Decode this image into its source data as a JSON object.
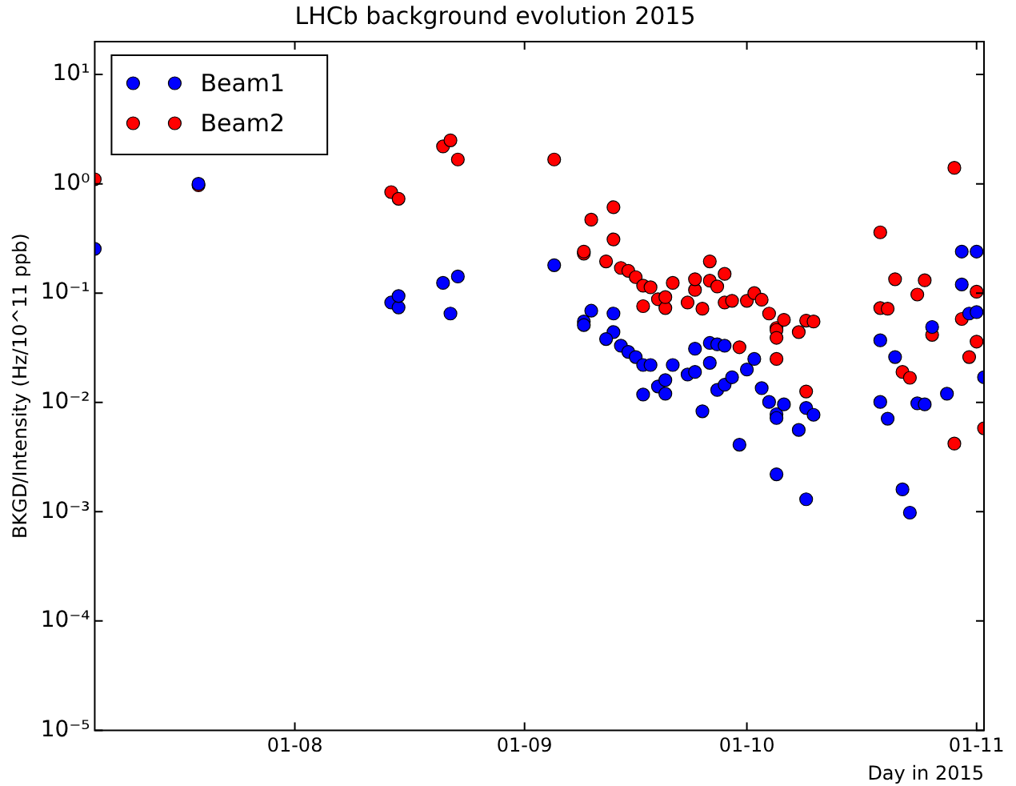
{
  "chart_data": {
    "type": "scatter",
    "title": "LHCb background evolution 2015",
    "xlabel": "Day in 2015",
    "ylabel": "BKGD/Intensity (Hz/10^11 ppb)",
    "log": "y",
    "grid": false,
    "legend": "top left",
    "marker": "circle",
    "xlim": [
      "2015-07-05",
      "2015-11-02"
    ],
    "xticks": [
      {
        "value": "2015-08-01",
        "label": "01-08"
      },
      {
        "value": "2015-09-01",
        "label": "01-09"
      },
      {
        "value": "2015-10-01",
        "label": "01-10"
      },
      {
        "value": "2015-11-01",
        "label": "01-11"
      }
    ],
    "ylim": [
      1e-05,
      20
    ],
    "yticks": [
      {
        "value": 1e-05,
        "label": "10⁻⁵"
      },
      {
        "value": 0.0001,
        "label": "10⁻⁴"
      },
      {
        "value": 0.001,
        "label": "10⁻³"
      },
      {
        "value": 0.01,
        "label": "10⁻²"
      },
      {
        "value": 0.1,
        "label": "10⁻¹"
      },
      {
        "value": 1,
        "label": "10⁰"
      },
      {
        "value": 10,
        "label": "10¹"
      }
    ],
    "series": [
      {
        "name": "Beam1",
        "color": "#0000ff",
        "x": [
          "2015-07-05",
          "2015-07-19",
          "2015-08-14",
          "2015-08-15",
          "2015-08-15",
          "2015-08-21",
          "2015-08-22",
          "2015-08-23",
          "2015-09-05",
          "2015-09-09",
          "2015-09-09",
          "2015-09-10",
          "2015-09-13",
          "2015-09-13",
          "2015-09-12",
          "2015-09-14",
          "2015-09-15",
          "2015-09-16",
          "2015-09-17",
          "2015-09-18",
          "2015-09-17",
          "2015-09-19",
          "2015-09-20",
          "2015-09-20",
          "2015-09-21",
          "2015-09-23",
          "2015-09-24",
          "2015-09-24",
          "2015-09-25",
          "2015-09-26",
          "2015-09-26",
          "2015-09-27",
          "2015-09-28",
          "2015-09-27",
          "2015-09-28",
          "2015-09-29",
          "2015-09-30",
          "2015-10-01",
          "2015-10-02",
          "2015-10-03",
          "2015-10-04",
          "2015-10-05",
          "2015-10-05",
          "2015-10-06",
          "2015-10-05",
          "2015-10-08",
          "2015-10-09",
          "2015-10-10",
          "2015-10-09",
          "2015-10-19",
          "2015-10-19",
          "2015-10-20",
          "2015-10-21",
          "2015-10-22",
          "2015-10-23",
          "2015-10-24",
          "2015-10-25",
          "2015-10-26",
          "2015-10-28",
          "2015-10-30",
          "2015-10-30",
          "2015-10-31",
          "2015-11-01",
          "2015-11-01",
          "2015-11-02"
        ],
        "values": [
          0.254,
          1.0,
          0.082,
          0.074,
          0.094,
          0.124,
          0.065,
          0.142,
          0.18,
          0.055,
          0.051,
          0.069,
          0.065,
          0.044,
          0.038,
          0.033,
          0.029,
          0.026,
          0.022,
          0.022,
          0.0118,
          0.014,
          0.012,
          0.016,
          0.022,
          0.018,
          0.019,
          0.031,
          0.0083,
          0.035,
          0.023,
          0.034,
          0.033,
          0.013,
          0.0145,
          0.017,
          0.0041,
          0.02,
          0.025,
          0.0135,
          0.0101,
          0.0078,
          0.0072,
          0.0096,
          0.0022,
          0.0056,
          0.0089,
          0.0077,
          0.0013,
          0.037,
          0.0101,
          0.0071,
          0.026,
          0.0016,
          0.00098,
          0.0098,
          0.0096,
          0.049,
          0.012,
          0.24,
          0.12,
          0.065,
          0.24,
          0.067,
          0.017
        ]
      },
      {
        "name": "Beam2",
        "color": "#ff0000",
        "x": [
          "2015-07-05",
          "2015-07-19",
          "2015-08-14",
          "2015-08-15",
          "2015-08-21",
          "2015-08-22",
          "2015-08-23",
          "2015-09-05",
          "2015-09-09",
          "2015-09-09",
          "2015-09-10",
          "2015-09-12",
          "2015-09-13",
          "2015-09-13",
          "2015-09-14",
          "2015-09-15",
          "2015-09-16",
          "2015-09-17",
          "2015-09-17",
          "2015-09-18",
          "2015-09-19",
          "2015-09-20",
          "2015-09-20",
          "2015-09-21",
          "2015-09-23",
          "2015-09-24",
          "2015-09-24",
          "2015-09-25",
          "2015-09-26",
          "2015-09-26",
          "2015-09-27",
          "2015-09-28",
          "2015-09-28",
          "2015-09-29",
          "2015-09-30",
          "2015-10-01",
          "2015-10-02",
          "2015-10-03",
          "2015-10-04",
          "2015-10-05",
          "2015-10-05",
          "2015-10-05",
          "2015-10-06",
          "2015-10-05",
          "2015-10-08",
          "2015-10-09",
          "2015-10-09",
          "2015-10-10",
          "2015-10-19",
          "2015-10-19",
          "2015-10-20",
          "2015-10-21",
          "2015-10-22",
          "2015-10-23",
          "2015-10-24",
          "2015-10-25",
          "2015-10-26",
          "2015-10-29",
          "2015-10-29",
          "2015-10-30",
          "2015-10-31",
          "2015-11-01",
          "2015-11-01",
          "2015-11-02"
        ],
        "values": [
          1.1,
          0.97,
          0.84,
          0.73,
          2.2,
          2.5,
          1.67,
          1.67,
          0.23,
          0.24,
          0.47,
          0.195,
          0.61,
          0.31,
          0.17,
          0.16,
          0.14,
          0.117,
          0.076,
          0.113,
          0.088,
          0.073,
          0.092,
          0.124,
          0.082,
          0.107,
          0.134,
          0.072,
          0.195,
          0.13,
          0.115,
          0.15,
          0.082,
          0.085,
          0.032,
          0.085,
          0.1,
          0.087,
          0.065,
          0.048,
          0.046,
          0.039,
          0.057,
          0.025,
          0.044,
          0.056,
          0.0126,
          0.055,
          0.36,
          0.073,
          0.072,
          0.134,
          0.019,
          0.0168,
          0.097,
          0.131,
          0.0415,
          1.4,
          0.0042,
          0.058,
          0.026,
          0.103,
          0.036,
          0.0058
        ]
      }
    ]
  }
}
